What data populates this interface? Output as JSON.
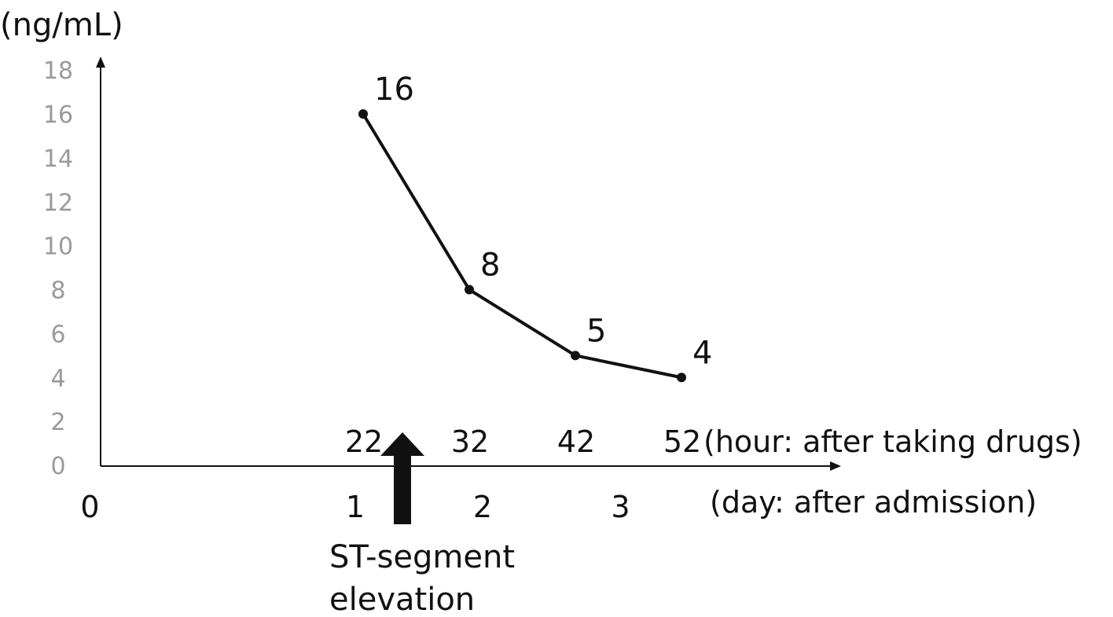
{
  "chart_data": {
    "type": "line",
    "ylabel": "(ng/mL)",
    "ylim": [
      0,
      18
    ],
    "y_ticks": [
      "0",
      "2",
      "4",
      "6",
      "8",
      "10",
      "12",
      "14",
      "16",
      "18"
    ],
    "x_hours": [
      22,
      32,
      42,
      52
    ],
    "series": [
      {
        "values": [
          16,
          8,
          5,
          4
        ],
        "data_labels": [
          "16",
          "8",
          "5",
          "4"
        ]
      }
    ],
    "hour_axis": {
      "tick_labels": [
        "22",
        "32",
        "42",
        "52"
      ],
      "label": "(hour: after taking drugs)"
    },
    "day_axis": {
      "ticks": [
        {
          "label": "0",
          "hour": -3
        },
        {
          "label": "1",
          "hour": 22
        },
        {
          "label": "2",
          "hour": 34
        },
        {
          "label": "3",
          "hour": 47
        }
      ],
      "label": "(day: after admission)"
    },
    "annotation": {
      "hour": 26,
      "lines": [
        "ST-segment",
        "elevation"
      ]
    },
    "grid": false,
    "legend": "none"
  }
}
